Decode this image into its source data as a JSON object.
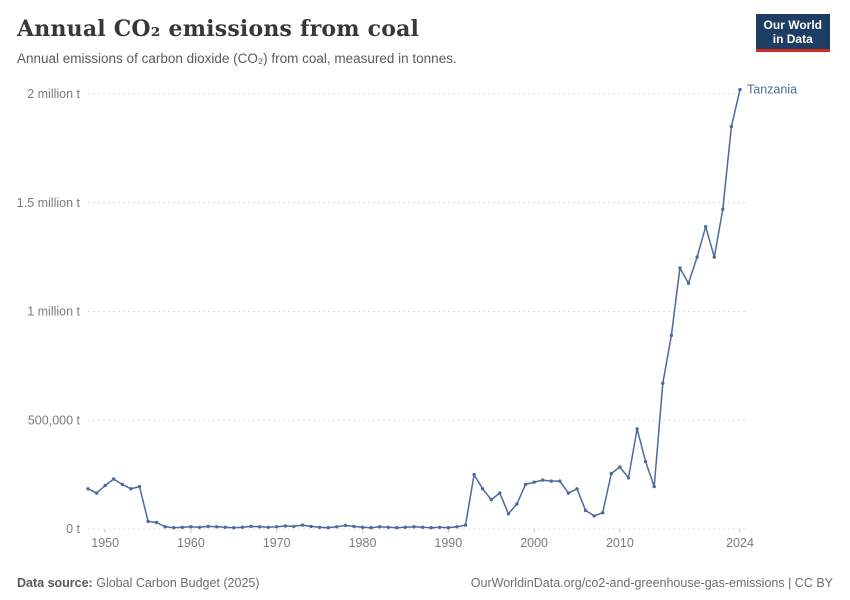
{
  "header": {
    "logo": {
      "line1": "Our World",
      "line2": "in Data"
    }
  },
  "chart_data": {
    "type": "line",
    "title": "Annual CO₂ emissions from coal",
    "subtitle": "Annual emissions of carbon dioxide (CO₂) from coal, measured in tonnes.",
    "xlabel": "",
    "ylabel": "",
    "xlim": [
      1948,
      2024
    ],
    "ylim": [
      0,
      2000000
    ],
    "x_ticks": [
      1950,
      1960,
      1970,
      1980,
      1990,
      2000,
      2010,
      2024
    ],
    "y_ticks": [
      {
        "value": 0,
        "label": "0 t"
      },
      {
        "value": 500000,
        "label": "500,000 t"
      },
      {
        "value": 1000000,
        "label": "1 million t"
      },
      {
        "value": 1500000,
        "label": "1.5 million t"
      },
      {
        "value": 2000000,
        "label": "2 million t"
      }
    ],
    "grid": "horizontal-dashed",
    "legend_position": "end-of-line",
    "series": [
      {
        "name": "Tanzania",
        "color": "#4C6A9C",
        "x": [
          1948,
          1949,
          1950,
          1951,
          1952,
          1953,
          1954,
          1955,
          1956,
          1957,
          1958,
          1959,
          1960,
          1961,
          1962,
          1963,
          1964,
          1965,
          1966,
          1967,
          1968,
          1969,
          1970,
          1971,
          1972,
          1973,
          1974,
          1975,
          1976,
          1977,
          1978,
          1979,
          1980,
          1981,
          1982,
          1983,
          1984,
          1985,
          1986,
          1987,
          1988,
          1989,
          1990,
          1991,
          1992,
          1993,
          1994,
          1995,
          1996,
          1997,
          1998,
          1999,
          2000,
          2001,
          2002,
          2003,
          2004,
          2005,
          2006,
          2007,
          2008,
          2009,
          2010,
          2011,
          2012,
          2013,
          2014,
          2015,
          2016,
          2017,
          2018,
          2019,
          2020,
          2021,
          2022,
          2023,
          2024
        ],
        "values": [
          185000,
          165000,
          200000,
          230000,
          205000,
          185000,
          195000,
          35000,
          30000,
          10000,
          6000,
          8000,
          10000,
          8000,
          12000,
          10000,
          8000,
          6000,
          8000,
          12000,
          10000,
          8000,
          10000,
          14000,
          12000,
          18000,
          12000,
          8000,
          6000,
          10000,
          16000,
          12000,
          8000,
          6000,
          10000,
          8000,
          6000,
          8000,
          10000,
          8000,
          6000,
          8000,
          6000,
          10000,
          18000,
          250000,
          185000,
          135000,
          165000,
          70000,
          115000,
          205000,
          215000,
          225000,
          220000,
          220000,
          165000,
          185000,
          85000,
          60000,
          75000,
          255000,
          285000,
          235000,
          460000,
          310000,
          195000,
          670000,
          890000,
          1200000,
          1130000,
          1250000,
          1390000,
          1250000,
          1470000,
          1850000,
          2020000
        ]
      }
    ]
  },
  "colors": {
    "line": "#4C6A9C",
    "logo_bg": "#1D3D63",
    "logo_stripe": "#D42B21"
  },
  "footer": {
    "source_label": "Data source:",
    "source_value": "Global Carbon Budget (2025)",
    "right_text": "OurWorldinData.org/co2-and-greenhouse-gas-emissions | CC BY"
  }
}
